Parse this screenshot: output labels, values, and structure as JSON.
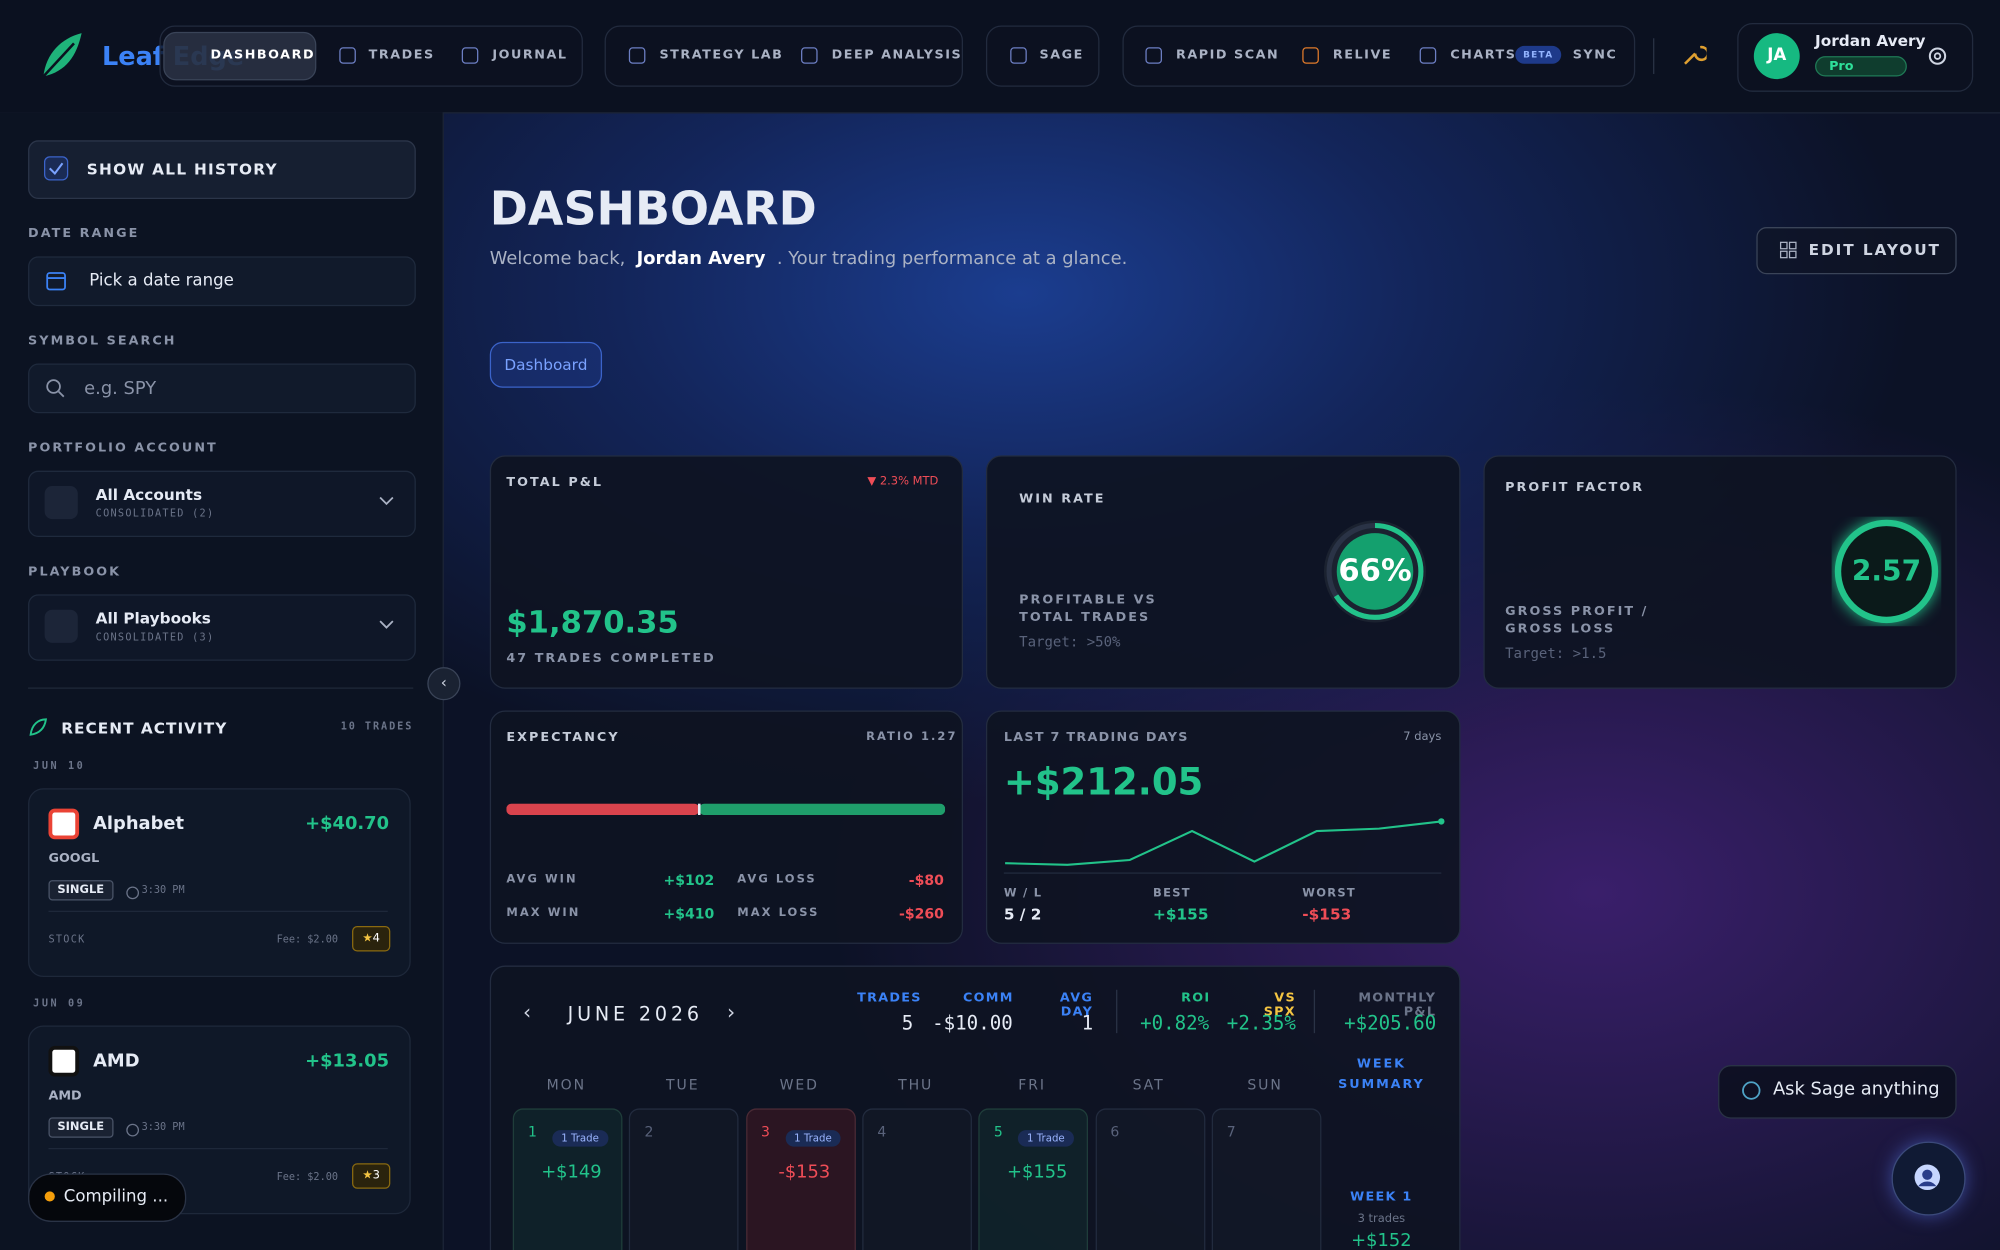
{
  "nav": {
    "brand": "Leaf Edge",
    "items": [
      "DASHBOARD",
      "TRADES",
      "JOURNAL",
      "STRATEGY LAB",
      "DEEP ANALYSIS",
      "SAGE",
      "RAPID SCAN",
      "RELIVE",
      "CHARTS"
    ],
    "beta": "BETA",
    "sync": "SYNC",
    "user": {
      "name": "Jordan Avery",
      "initials": "JA",
      "plan": "Pro"
    }
  },
  "sidebar": {
    "show_all": "SHOW ALL HISTORY",
    "date_range": {
      "label": "DATE RANGE",
      "placeholder": "Pick a date range"
    },
    "symbol_search": {
      "label": "SYMBOL SEARCH",
      "placeholder": "e.g. SPY"
    },
    "portfolio": {
      "label": "PORTFOLIO ACCOUNT",
      "value": "All Accounts",
      "sub": "CONSOLIDATED (2)"
    },
    "playbook": {
      "label": "PLAYBOOK",
      "value": "All Playbooks",
      "sub": "CONSOLIDATED (3)"
    },
    "recent": {
      "title": "RECENT ACTIVITY",
      "count": "10 TRADES",
      "groups": [
        {
          "date": "JUN 10",
          "name": "Alphabet",
          "symbol": "GOOGL",
          "pnl": "+$40.70",
          "type": "SINGLE",
          "time": "3:30 PM",
          "asset": "STOCK",
          "fee": "Fee: $2.00",
          "rating": 4
        },
        {
          "date": "JUN 09",
          "name": "AMD",
          "symbol": "AMD",
          "pnl": "+$13.05",
          "type": "SINGLE",
          "time": "3:30 PM",
          "asset": "STOCK",
          "fee": "Fee: $2.00",
          "rating": 3
        }
      ]
    },
    "compiling": "Compiling ..."
  },
  "main": {
    "title": "DASHBOARD",
    "welcome_prefix": "Welcome back,",
    "welcome_name": "Jordan Avery",
    "welcome_suffix": ". Your trading performance at a glance.",
    "edit_layout": "EDIT LAYOUT",
    "tab": "Dashboard",
    "cards": {
      "total_pnl": {
        "label": "TOTAL P&L",
        "change": "▼ 2.3% MTD",
        "value": "$1,870.35",
        "sub": "47 TRADES COMPLETED"
      },
      "win_rate": {
        "label": "WIN RATE",
        "gauge": {
          "value": 66,
          "label": "66%"
        },
        "desc": "PROFITABLE VS TOTAL TRADES",
        "target": "Target: >50%"
      },
      "profit_factor": {
        "label": "PROFIT FACTOR",
        "value": "2.57",
        "desc": "GROSS PROFIT / GROSS LOSS",
        "target": "Target: >1.5"
      },
      "expectancy": {
        "label": "EXPECTANCY",
        "ratio": "RATIO 1.27",
        "avg_win_label": "AVG WIN",
        "avg_win": {
          "value": 102,
          "label": "+$102"
        },
        "avg_loss_label": "AVG LOSS",
        "avg_loss": {
          "value": -80,
          "label": "-$80"
        },
        "max_win_label": "MAX WIN",
        "max_win": "+$410",
        "max_loss_label": "MAX LOSS",
        "max_loss": "-$260"
      },
      "last7": {
        "label": "LAST 7 TRADING DAYS",
        "period": "7 days",
        "value": "+$212.05",
        "sparkline": [
          0,
          -2,
          4,
          40,
          2,
          40,
          43,
          52
        ],
        "wl_label": "W / L",
        "wl": "5 / 2",
        "best_label": "BEST",
        "best": "+$155",
        "worst_label": "WORST",
        "worst": "-$153"
      }
    },
    "calendar": {
      "month": "JUNE 2026",
      "stats": [
        {
          "label": "TRADES",
          "value": "5"
        },
        {
          "label": "COMM",
          "value": "-$10.00"
        },
        {
          "label": "AVG DAY",
          "value": "1"
        },
        {
          "label": "ROI",
          "value": "+0.82%"
        },
        {
          "label": "VS SPX",
          "value": "+2.35%"
        },
        {
          "label": "MONTHLY P&L",
          "value": "+$205.60"
        }
      ],
      "weekdays": [
        "MON",
        "TUE",
        "WED",
        "THU",
        "FRI",
        "SAT",
        "SUN"
      ],
      "week_summary": "WEEK SUMMARY",
      "days": [
        {
          "day": "1",
          "trades": "1 Trade",
          "pnl": "+$149"
        },
        {
          "day": "2"
        },
        {
          "day": "3",
          "trades": "1 Trade",
          "pnl": "-$153"
        },
        {
          "day": "4"
        },
        {
          "day": "5",
          "trades": "1 Trade",
          "pnl": "+$155"
        },
        {
          "day": "6"
        },
        {
          "day": "7"
        }
      ],
      "week": {
        "label": "WEEK 1",
        "trades": "3 trades",
        "pnl": "+$152"
      }
    },
    "ask_sage": "Ask Sage anything"
  }
}
